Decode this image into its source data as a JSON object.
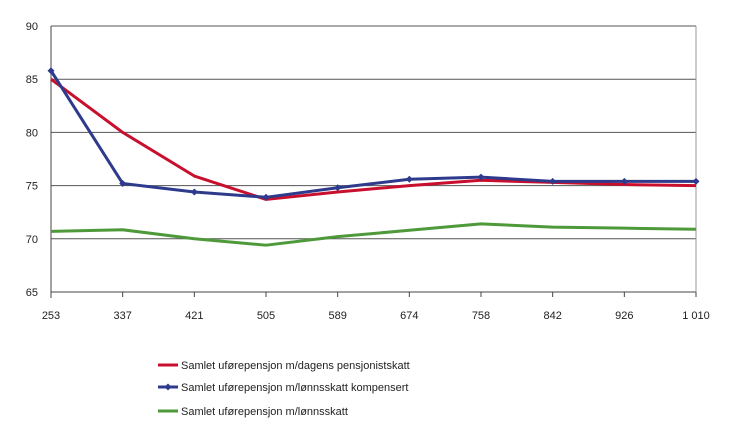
{
  "chart_data": {
    "type": "line",
    "title": "",
    "xlabel": "",
    "ylabel": "",
    "categories": [
      "253",
      "337",
      "421",
      "505",
      "589",
      "674",
      "758",
      "842",
      "926",
      "1 010"
    ],
    "ylim": [
      65,
      90
    ],
    "yticks": [
      65,
      70,
      75,
      80,
      85,
      90
    ],
    "grid": true,
    "legend_placement": "bottom",
    "series": [
      {
        "name": "Samlet uførepensjon m/dagens pensjonistskatt",
        "color": "#c8102e",
        "markers": false,
        "values": [
          85.0,
          80.0,
          75.9,
          73.7,
          74.4,
          75.0,
          75.5,
          75.3,
          75.1,
          75.0
        ]
      },
      {
        "name": "Samlet uførepensjon m/lønnsskatt kompensert",
        "color": "#2e3a8c",
        "markers": true,
        "values": [
          85.8,
          75.2,
          74.4,
          73.9,
          74.8,
          75.6,
          75.8,
          75.4,
          75.4,
          75.4
        ]
      },
      {
        "name": "Samlet uførepensjon m/lønnsskatt",
        "color": "#4e9a3a",
        "markers": false,
        "values": [
          70.7,
          70.85,
          70.0,
          69.4,
          70.2,
          70.8,
          71.4,
          71.1,
          71.0,
          70.9
        ]
      }
    ]
  }
}
